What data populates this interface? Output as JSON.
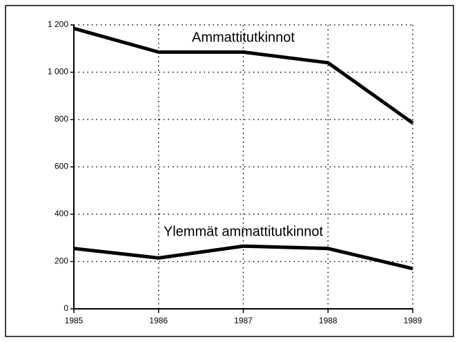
{
  "chart_data": {
    "type": "line",
    "x": [
      1985,
      1986,
      1987,
      1988,
      1989
    ],
    "xlim": [
      1985,
      1989
    ],
    "xticks": [
      1985,
      1986,
      1987,
      1988,
      1989
    ],
    "ylim": [
      0,
      1200
    ],
    "yticks": [
      0,
      200,
      400,
      600,
      800,
      {
        "value": 1000,
        "label": "1 000"
      },
      {
        "value": 1200,
        "label": "1 200"
      }
    ],
    "grid": true,
    "series": [
      {
        "name": "Ammattitutkinnot",
        "color": "#000000",
        "values": [
          1185,
          1085,
          1085,
          1040,
          785
        ]
      },
      {
        "name": "Ylemmät ammattitutkinnot",
        "color": "#000000",
        "values": [
          255,
          215,
          265,
          255,
          170
        ]
      }
    ]
  }
}
